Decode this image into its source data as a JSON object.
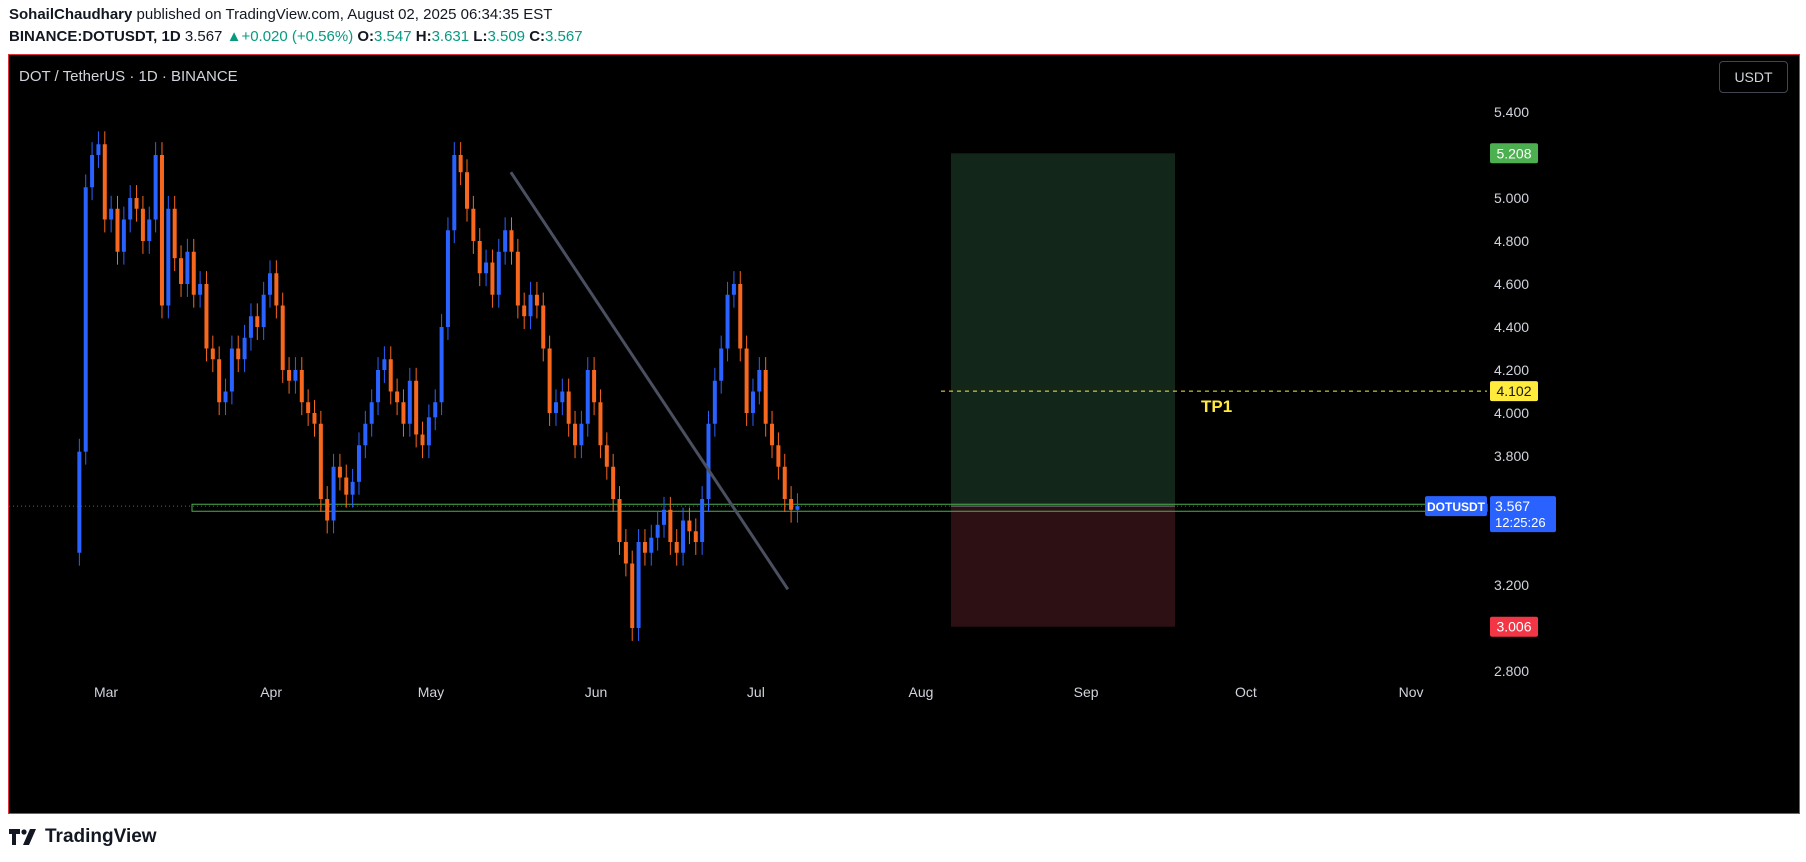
{
  "header": {
    "author": "SohailChaudhary",
    "published": " published on TradingView.com, August 02, 2025 06:34:35 EST",
    "symbol": "BINANCE:DOTUSDT, 1D",
    "last": "3.567",
    "change": "+0.020 (+0.56%)",
    "o_label": "O:",
    "o": "3.547",
    "h_label": "H:",
    "h": "3.631",
    "l_label": "L:",
    "l": "3.509",
    "c_label": "C:",
    "c": "3.567"
  },
  "chart_title": "DOT / TetherUS · 1D · BINANCE",
  "currency_button": "USDT",
  "footer": {
    "brand": "TradingView",
    "logo_icon": "tradingview-logo-icon"
  },
  "colors": {
    "up": "#2962ff",
    "down": "#f7671e",
    "target": "#4caf50",
    "stop": "#f23645",
    "tp": "#ffeb3b"
  },
  "chart_data": {
    "type": "candlestick",
    "title": "DOT / TetherUS · 1D · BINANCE",
    "y_ticks": [
      "5.400",
      "5.000",
      "4.800",
      "4.600",
      "4.400",
      "4.200",
      "4.000",
      "3.800",
      "3.200",
      "2.800"
    ],
    "ylim": [
      2.7,
      5.6
    ],
    "x_ticks": [
      {
        "label": "Mar",
        "day": 27
      },
      {
        "label": "Apr",
        "day": 58
      },
      {
        "label": "May",
        "day": 88
      },
      {
        "label": "Jun",
        "day": 119
      },
      {
        "label": "Jul",
        "day": 149
      },
      {
        "label": "Aug",
        "day": 180
      },
      {
        "label": "Sep",
        "day": 211
      },
      {
        "label": "Oct",
        "day": 241
      },
      {
        "label": "Nov",
        "day": 272
      }
    ],
    "price_labels": {
      "target": "5.208",
      "tp1": "4.102",
      "symbol": "DOTUSDT",
      "last": "3.567",
      "countdown": "12:25:26",
      "support": "3.557",
      "stop": "3.006"
    },
    "tp_label": "TP1",
    "levels": {
      "target": 5.208,
      "tp1": 4.102,
      "entry": 3.567,
      "support": 3.557,
      "stop": 3.006
    },
    "trendline": [
      {
        "day": 103,
        "price": 5.12
      },
      {
        "day": 155,
        "price": 3.18
      }
    ],
    "candles": [
      [
        3.35,
        3.82
      ],
      [
        3.82,
        5.05
      ],
      [
        5.05,
        5.2
      ],
      [
        5.2,
        5.25
      ],
      [
        5.25,
        4.9
      ],
      [
        4.9,
        4.95
      ],
      [
        4.95,
        4.75
      ],
      [
        4.75,
        4.9
      ],
      [
        4.9,
        5.0
      ],
      [
        5.0,
        4.95
      ],
      [
        4.95,
        4.8
      ],
      [
        4.8,
        4.9
      ],
      [
        4.9,
        5.2
      ],
      [
        5.2,
        4.5
      ],
      [
        4.5,
        4.95
      ],
      [
        4.95,
        4.72
      ],
      [
        4.72,
        4.6
      ],
      [
        4.6,
        4.75
      ],
      [
        4.75,
        4.55
      ],
      [
        4.55,
        4.6
      ],
      [
        4.6,
        4.3
      ],
      [
        4.3,
        4.25
      ],
      [
        4.25,
        4.05
      ],
      [
        4.05,
        4.1
      ],
      [
        4.1,
        4.3
      ],
      [
        4.3,
        4.25
      ],
      [
        4.25,
        4.35
      ],
      [
        4.35,
        4.45
      ],
      [
        4.45,
        4.4
      ],
      [
        4.4,
        4.55
      ],
      [
        4.55,
        4.65
      ],
      [
        4.65,
        4.5
      ],
      [
        4.5,
        4.2
      ],
      [
        4.2,
        4.15
      ],
      [
        4.15,
        4.2
      ],
      [
        4.2,
        4.05
      ],
      [
        4.05,
        4.0
      ],
      [
        4.0,
        3.95
      ],
      [
        3.95,
        3.6
      ],
      [
        3.6,
        3.5
      ],
      [
        3.5,
        3.75
      ],
      [
        3.75,
        3.7
      ],
      [
        3.7,
        3.62
      ],
      [
        3.62,
        3.68
      ],
      [
        3.68,
        3.85
      ],
      [
        3.85,
        3.95
      ],
      [
        3.95,
        4.05
      ],
      [
        4.05,
        4.2
      ],
      [
        4.2,
        4.25
      ],
      [
        4.25,
        4.1
      ],
      [
        4.1,
        4.05
      ],
      [
        4.05,
        3.95
      ],
      [
        3.95,
        4.15
      ],
      [
        4.15,
        3.9
      ],
      [
        3.9,
        3.85
      ],
      [
        3.85,
        3.98
      ],
      [
        3.98,
        4.05
      ],
      [
        4.05,
        4.4
      ],
      [
        4.4,
        4.85
      ],
      [
        4.85,
        5.2
      ],
      [
        5.2,
        5.12
      ],
      [
        5.12,
        4.95
      ],
      [
        4.95,
        4.8
      ],
      [
        4.8,
        4.65
      ],
      [
        4.65,
        4.7
      ],
      [
        4.7,
        4.55
      ],
      [
        4.55,
        4.75
      ],
      [
        4.75,
        4.85
      ],
      [
        4.85,
        4.75
      ],
      [
        4.75,
        4.5
      ],
      [
        4.5,
        4.45
      ],
      [
        4.45,
        4.55
      ],
      [
        4.55,
        4.5
      ],
      [
        4.5,
        4.3
      ],
      [
        4.3,
        4.0
      ],
      [
        4.0,
        4.05
      ],
      [
        4.05,
        4.1
      ],
      [
        4.1,
        3.95
      ],
      [
        3.95,
        3.85
      ],
      [
        3.85,
        3.95
      ],
      [
        3.95,
        4.2
      ],
      [
        4.2,
        4.05
      ],
      [
        4.05,
        3.85
      ],
      [
        3.85,
        3.75
      ],
      [
        3.75,
        3.6
      ],
      [
        3.6,
        3.4
      ],
      [
        3.4,
        3.3
      ],
      [
        3.3,
        3.0
      ],
      [
        3.0,
        3.4
      ],
      [
        3.4,
        3.35
      ],
      [
        3.35,
        3.42
      ],
      [
        3.42,
        3.48
      ],
      [
        3.48,
        3.55
      ],
      [
        3.55,
        3.4
      ],
      [
        3.4,
        3.35
      ],
      [
        3.35,
        3.5
      ],
      [
        3.5,
        3.45
      ],
      [
        3.45,
        3.4
      ],
      [
        3.4,
        3.6
      ],
      [
        3.6,
        3.95
      ],
      [
        3.95,
        4.15
      ],
      [
        4.15,
        4.3
      ],
      [
        4.3,
        4.55
      ],
      [
        4.55,
        4.6
      ],
      [
        4.6,
        4.3
      ],
      [
        4.3,
        4.0
      ],
      [
        4.0,
        4.1
      ],
      [
        4.1,
        4.2
      ],
      [
        4.2,
        3.95
      ],
      [
        3.95,
        3.85
      ],
      [
        3.85,
        3.75
      ],
      [
        3.75,
        3.6
      ],
      [
        3.6,
        3.55
      ],
      [
        3.55,
        3.567
      ]
    ]
  }
}
